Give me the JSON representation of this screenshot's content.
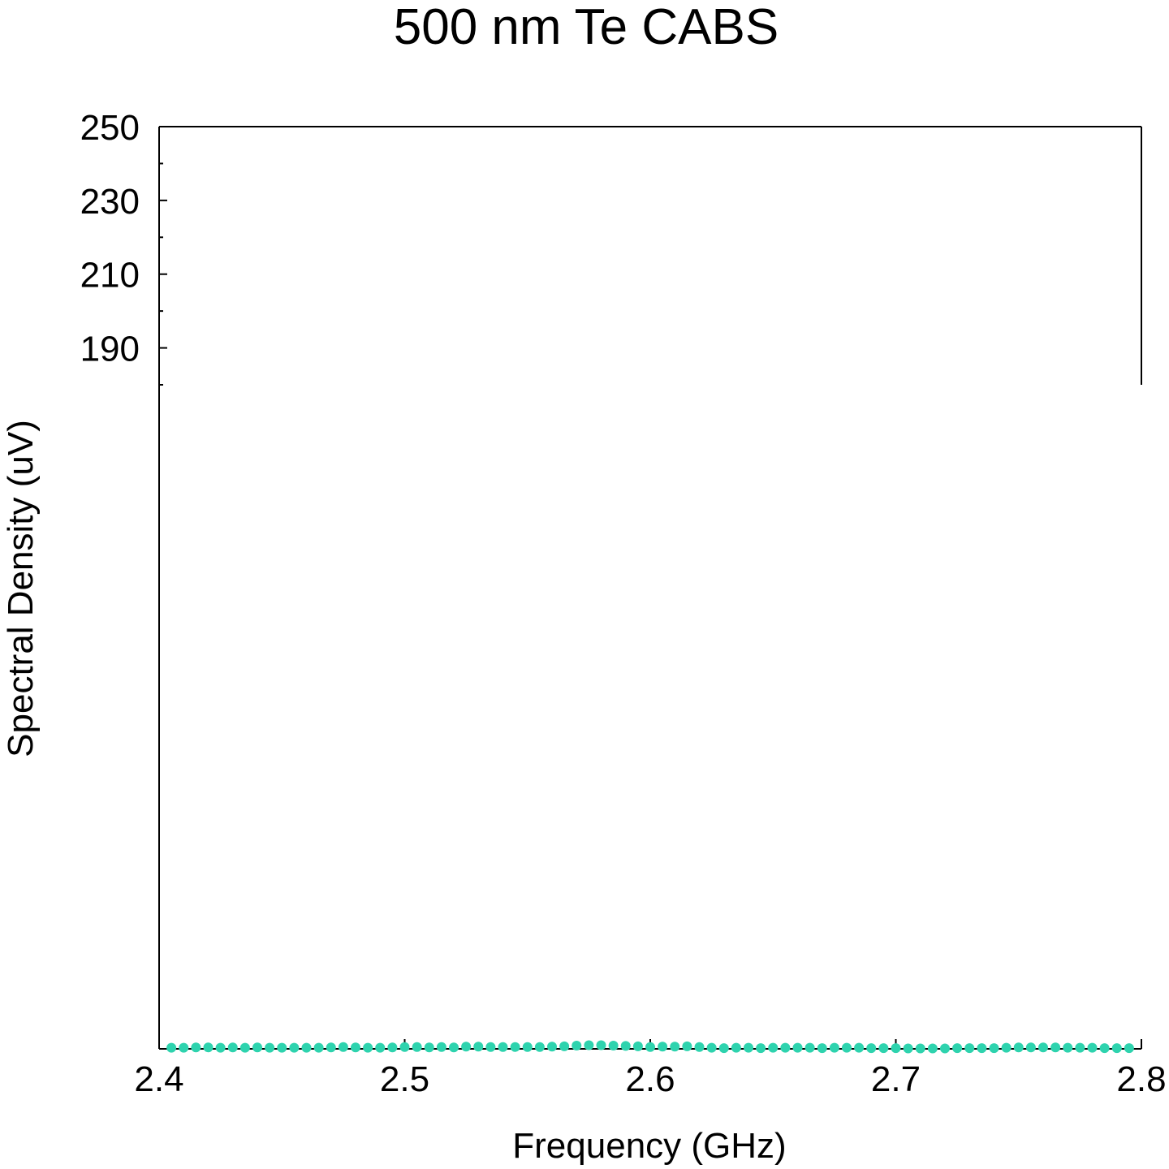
{
  "chart_data": {
    "type": "scatter",
    "title": "500 nm Te CABS",
    "xlabel": "Frequency (GHz)",
    "ylabel": "Spectral Density (uV)",
    "xlim": [
      2.4,
      2.8
    ],
    "ylim": [
      0,
      250
    ],
    "y_axis_break": [
      180,
      250
    ],
    "x_ticks": [
      "2.4",
      "2.5",
      "2.6",
      "2.7",
      "2.8"
    ],
    "y_ticks": [
      "190",
      "210",
      "230",
      "250"
    ],
    "grid": false,
    "point_color": "#2ed3ae",
    "series": [
      {
        "x": [
          2.405,
          2.41,
          2.415,
          2.42,
          2.425,
          2.43,
          2.435,
          2.44,
          2.445,
          2.45,
          2.455,
          2.46,
          2.465,
          2.47,
          2.475,
          2.48,
          2.485,
          2.49,
          2.495,
          2.5,
          2.505,
          2.51,
          2.515,
          2.52,
          2.525,
          2.53,
          2.535,
          2.54,
          2.545,
          2.55,
          2.555,
          2.56,
          2.565,
          2.57,
          2.575,
          2.58,
          2.585,
          2.59,
          2.595,
          2.6,
          2.605,
          2.61,
          2.615,
          2.62,
          2.625,
          2.63,
          2.635,
          2.64,
          2.645,
          2.65,
          2.655,
          2.66,
          2.665,
          2.67,
          2.675,
          2.68,
          2.685,
          2.69,
          2.695,
          2.7,
          2.705,
          2.71,
          2.715,
          2.72,
          2.725,
          2.73,
          2.735,
          2.74,
          2.745,
          2.75,
          2.755,
          2.76,
          2.765,
          2.77,
          2.775,
          2.78,
          2.785,
          2.79,
          2.795
        ],
        "y": [
          0.3,
          0.3,
          0.4,
          0.4,
          0.3,
          0.4,
          0.3,
          0.4,
          0.3,
          0.3,
          0.3,
          0.3,
          0.3,
          0.4,
          0.5,
          0.4,
          0.3,
          0.3,
          0.4,
          0.5,
          0.5,
          0.4,
          0.5,
          0.4,
          0.6,
          0.6,
          0.5,
          0.5,
          0.5,
          0.5,
          0.5,
          0.6,
          0.7,
          0.9,
          1.0,
          1.0,
          0.9,
          0.8,
          0.7,
          0.5,
          0.6,
          0.6,
          0.7,
          0.5,
          0.3,
          0.2,
          0.3,
          0.3,
          0.2,
          0.3,
          0.3,
          0.3,
          0.3,
          0.2,
          0.3,
          0.3,
          0.3,
          0.2,
          0.2,
          0.2,
          0.1,
          0.1,
          0.1,
          0.1,
          0.2,
          0.2,
          0.2,
          0.2,
          0.3,
          0.4,
          0.4,
          0.4,
          0.4,
          0.3,
          0.3,
          0.3,
          0.2,
          0.2,
          0.2
        ]
      }
    ]
  }
}
